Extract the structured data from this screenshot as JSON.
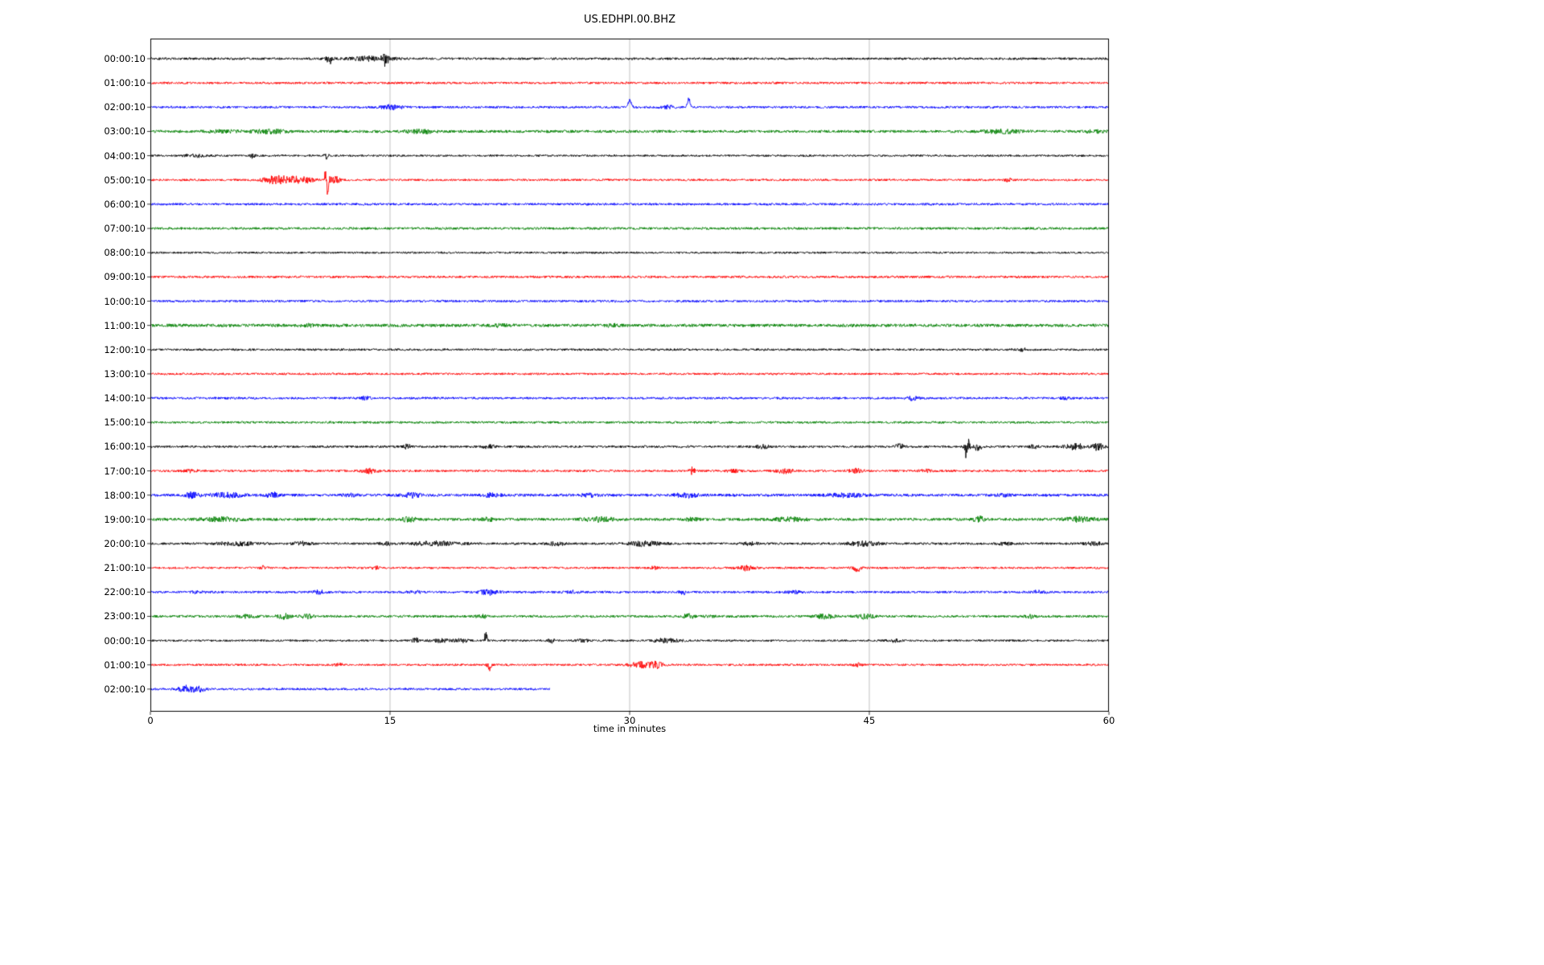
{
  "title": "US.EDHPI.00.BHZ",
  "chart_data": {
    "type": "line",
    "variant": "helicorder-seismogram",
    "title": "US.EDHPI.00.BHZ",
    "xlabel": "time in minutes",
    "xlim": [
      0,
      60
    ],
    "x_ticks": [
      "0",
      "15",
      "30",
      "45",
      "60"
    ],
    "x_tick_values": [
      0,
      15,
      30,
      45,
      60
    ],
    "grid_x_minutes": [
      15,
      30,
      45
    ],
    "grid_color": "#b0b0b0",
    "axis_color": "#000000",
    "trace_colors_cycle": [
      "#000000",
      "#ff0000",
      "#0000ff",
      "#008000"
    ],
    "rows": [
      {
        "label": "00:00:10",
        "color": "#000000",
        "duration_min": 60,
        "noise_amp": 1.4,
        "events": [
          {
            "t": 11.2,
            "w": 0.15,
            "amp": 4
          },
          {
            "t": 11.25,
            "w": 0.1,
            "amp": 3,
            "dir": -1
          },
          {
            "t": 13.9,
            "w": 1.0,
            "amp": 2.5
          },
          {
            "t": 14.7,
            "w": 0.12,
            "amp": 5
          },
          {
            "t": 14.75,
            "w": 0.1,
            "amp": 3,
            "dir": -1
          }
        ]
      },
      {
        "label": "01:00:10",
        "color": "#ff0000",
        "duration_min": 60,
        "noise_amp": 1.35,
        "events": []
      },
      {
        "label": "02:00:10",
        "color": "#0000ff",
        "duration_min": 60,
        "noise_amp": 1.4,
        "events": [
          {
            "t": 15.1,
            "w": 0.5,
            "amp": 2.5
          },
          {
            "t": 30.0,
            "w": 0.1,
            "amp": 10,
            "dir": 1
          },
          {
            "t": 32.4,
            "w": 0.3,
            "amp": 2
          },
          {
            "t": 33.7,
            "w": 0.08,
            "amp": 12,
            "dir": 1
          }
        ]
      },
      {
        "label": "03:00:10",
        "color": "#008000",
        "duration_min": 60,
        "noise_amp": 1.7,
        "events": [
          {
            "t": 4.6,
            "w": 0.6,
            "amp": 1.5
          },
          {
            "t": 7.4,
            "w": 0.8,
            "amp": 2
          },
          {
            "t": 16.9,
            "w": 0.6,
            "amp": 2
          },
          {
            "t": 53.3,
            "w": 0.8,
            "amp": 2
          },
          {
            "t": 59.2,
            "w": 0.4,
            "amp": 1.5
          }
        ]
      },
      {
        "label": "04:00:10",
        "color": "#000000",
        "duration_min": 60,
        "noise_amp": 1.2,
        "events": [
          {
            "t": 2.8,
            "w": 0.5,
            "amp": 1.5
          },
          {
            "t": 6.4,
            "w": 0.15,
            "amp": 2.5
          },
          {
            "t": 11.0,
            "w": 0.1,
            "amp": 3.5
          }
        ]
      },
      {
        "label": "05:00:10",
        "color": "#ff0000",
        "duration_min": 60,
        "noise_amp": 1.3,
        "events": [
          {
            "t": 7.6,
            "w": 0.5,
            "amp": 3
          },
          {
            "t": 8.6,
            "w": 0.6,
            "amp": 4
          },
          {
            "t": 9.7,
            "w": 0.4,
            "amp": 3
          },
          {
            "t": 11.05,
            "w": 0.15,
            "amp": 6
          },
          {
            "t": 10.98,
            "w": 0.05,
            "amp": 14,
            "dir": 1
          },
          {
            "t": 11.06,
            "w": 0.05,
            "amp": 20,
            "dir": -1
          },
          {
            "t": 11.6,
            "w": 0.2,
            "amp": 4
          },
          {
            "t": 53.7,
            "w": 0.15,
            "amp": 2
          }
        ]
      },
      {
        "label": "06:00:10",
        "color": "#0000ff",
        "duration_min": 60,
        "noise_amp": 1.4,
        "events": []
      },
      {
        "label": "07:00:10",
        "color": "#008000",
        "duration_min": 60,
        "noise_amp": 1.5,
        "events": []
      },
      {
        "label": "08:00:10",
        "color": "#000000",
        "duration_min": 60,
        "noise_amp": 1.2,
        "events": []
      },
      {
        "label": "09:00:10",
        "color": "#ff0000",
        "duration_min": 60,
        "noise_amp": 1.4,
        "events": []
      },
      {
        "label": "10:00:10",
        "color": "#0000ff",
        "duration_min": 60,
        "noise_amp": 1.4,
        "events": []
      },
      {
        "label": "11:00:10",
        "color": "#008000",
        "duration_min": 60,
        "noise_amp": 1.9,
        "events": [
          {
            "t": 9.9,
            "w": 0.3,
            "amp": 1.2
          },
          {
            "t": 21.8,
            "w": 0.4,
            "amp": 1.2
          },
          {
            "t": 28.8,
            "w": 0.4,
            "amp": 1.2
          }
        ]
      },
      {
        "label": "12:00:10",
        "color": "#000000",
        "duration_min": 60,
        "noise_amp": 1.3,
        "events": [
          {
            "t": 54.6,
            "w": 0.2,
            "amp": 1.5
          }
        ]
      },
      {
        "label": "13:00:10",
        "color": "#ff0000",
        "duration_min": 60,
        "noise_amp": 1.3,
        "events": []
      },
      {
        "label": "14:00:10",
        "color": "#0000ff",
        "duration_min": 60,
        "noise_amp": 1.4,
        "events": [
          {
            "t": 13.5,
            "w": 0.2,
            "amp": 2
          },
          {
            "t": 47.7,
            "w": 0.25,
            "amp": 2.2
          },
          {
            "t": 57.2,
            "w": 0.2,
            "amp": 1.5
          }
        ]
      },
      {
        "label": "15:00:10",
        "color": "#008000",
        "duration_min": 60,
        "noise_amp": 1.4,
        "events": []
      },
      {
        "label": "16:00:10",
        "color": "#000000",
        "duration_min": 60,
        "noise_amp": 1.4,
        "events": [
          {
            "t": 16.1,
            "w": 0.15,
            "amp": 3
          },
          {
            "t": 21.2,
            "w": 0.3,
            "amp": 2
          },
          {
            "t": 38.3,
            "w": 0.3,
            "amp": 2.2
          },
          {
            "t": 46.9,
            "w": 0.2,
            "amp": 3
          },
          {
            "t": 51.1,
            "w": 0.12,
            "amp": 8
          },
          {
            "t": 51.1,
            "w": 0.06,
            "amp": 12,
            "dir": -1
          },
          {
            "t": 51.16,
            "w": 0.05,
            "amp": 10,
            "dir": 1
          },
          {
            "t": 51.8,
            "w": 0.15,
            "amp": 6
          },
          {
            "t": 55.3,
            "w": 0.2,
            "amp": 2
          },
          {
            "t": 57.9,
            "w": 0.4,
            "amp": 3.5
          },
          {
            "t": 59.3,
            "w": 0.25,
            "amp": 4
          }
        ]
      },
      {
        "label": "17:00:10",
        "color": "#ff0000",
        "duration_min": 60,
        "noise_amp": 1.4,
        "events": [
          {
            "t": 2.5,
            "w": 0.3,
            "amp": 1.5
          },
          {
            "t": 13.7,
            "w": 0.4,
            "amp": 2.5
          },
          {
            "t": 33.9,
            "w": 0.12,
            "amp": 4
          },
          {
            "t": 36.5,
            "w": 0.3,
            "amp": 1.5
          },
          {
            "t": 39.7,
            "w": 0.4,
            "amp": 2.5
          },
          {
            "t": 44.2,
            "w": 0.3,
            "amp": 2.5
          },
          {
            "t": 48.5,
            "w": 0.3,
            "amp": 1.5
          }
        ]
      },
      {
        "label": "18:00:10",
        "color": "#0000ff",
        "duration_min": 60,
        "noise_amp": 1.7,
        "events": [
          {
            "t": 2.6,
            "w": 0.3,
            "amp": 3
          },
          {
            "t": 4.8,
            "w": 0.7,
            "amp": 2.5
          },
          {
            "t": 7.6,
            "w": 0.25,
            "amp": 3.5
          },
          {
            "t": 12.5,
            "w": 0.3,
            "amp": 1.5
          },
          {
            "t": 16.4,
            "w": 0.4,
            "amp": 2.5
          },
          {
            "t": 21.3,
            "w": 0.4,
            "amp": 2
          },
          {
            "t": 27.5,
            "w": 0.4,
            "amp": 1.5
          },
          {
            "t": 33.6,
            "w": 0.5,
            "amp": 2.5
          },
          {
            "t": 43.6,
            "w": 0.8,
            "amp": 2
          },
          {
            "t": 53.5,
            "w": 0.4,
            "amp": 1.5
          }
        ]
      },
      {
        "label": "19:00:10",
        "color": "#008000",
        "duration_min": 60,
        "noise_amp": 1.7,
        "events": [
          {
            "t": 4.4,
            "w": 0.9,
            "amp": 2
          },
          {
            "t": 16.2,
            "w": 0.4,
            "amp": 2.5
          },
          {
            "t": 21.1,
            "w": 0.3,
            "amp": 2
          },
          {
            "t": 28.1,
            "w": 0.7,
            "amp": 2.5
          },
          {
            "t": 33.9,
            "w": 0.3,
            "amp": 1.5
          },
          {
            "t": 40.0,
            "w": 0.7,
            "amp": 2
          },
          {
            "t": 51.9,
            "w": 0.25,
            "amp": 3
          },
          {
            "t": 58.1,
            "w": 0.7,
            "amp": 2.5
          }
        ]
      },
      {
        "label": "20:00:10",
        "color": "#000000",
        "duration_min": 60,
        "noise_amp": 1.4,
        "events": [
          {
            "t": 5.4,
            "w": 0.9,
            "amp": 2
          },
          {
            "t": 9.5,
            "w": 0.4,
            "amp": 2
          },
          {
            "t": 14.8,
            "w": 0.3,
            "amp": 1.5
          },
          {
            "t": 17.9,
            "w": 1.0,
            "amp": 2.5
          },
          {
            "t": 25.4,
            "w": 0.4,
            "amp": 2
          },
          {
            "t": 30.9,
            "w": 0.7,
            "amp": 2.5
          },
          {
            "t": 37.5,
            "w": 0.4,
            "amp": 1.5
          },
          {
            "t": 44.6,
            "w": 0.7,
            "amp": 2.5
          },
          {
            "t": 53.5,
            "w": 0.3,
            "amp": 1.5
          },
          {
            "t": 59.0,
            "w": 0.4,
            "amp": 1.8
          }
        ]
      },
      {
        "label": "21:00:10",
        "color": "#ff0000",
        "duration_min": 60,
        "noise_amp": 1.3,
        "events": [
          {
            "t": 7.1,
            "w": 0.15,
            "amp": 2
          },
          {
            "t": 14.1,
            "w": 0.15,
            "amp": 1.8
          },
          {
            "t": 31.5,
            "w": 0.2,
            "amp": 1.5
          },
          {
            "t": 37.2,
            "w": 0.4,
            "amp": 3
          },
          {
            "t": 44.2,
            "w": 0.25,
            "amp": 2
          },
          {
            "t": 44.25,
            "w": 0.15,
            "amp": 3,
            "dir": -1
          }
        ]
      },
      {
        "label": "22:00:10",
        "color": "#0000ff",
        "duration_min": 60,
        "noise_amp": 1.4,
        "events": [
          {
            "t": 3.0,
            "w": 0.3,
            "amp": 1.5
          },
          {
            "t": 10.6,
            "w": 0.25,
            "amp": 2
          },
          {
            "t": 16.5,
            "w": 0.3,
            "amp": 1.5
          },
          {
            "t": 21.2,
            "w": 0.4,
            "amp": 3
          },
          {
            "t": 26.5,
            "w": 0.3,
            "amp": 1.5
          },
          {
            "t": 33.3,
            "w": 0.15,
            "amp": 3.5
          },
          {
            "t": 40.3,
            "w": 0.3,
            "amp": 1.5
          },
          {
            "t": 55.6,
            "w": 0.3,
            "amp": 1.5
          }
        ]
      },
      {
        "label": "23:00:10",
        "color": "#008000",
        "duration_min": 60,
        "noise_amp": 1.5,
        "events": [
          {
            "t": 6.0,
            "w": 0.4,
            "amp": 1.5
          },
          {
            "t": 8.4,
            "w": 0.3,
            "amp": 3
          },
          {
            "t": 9.8,
            "w": 0.25,
            "amp": 2.5
          },
          {
            "t": 20.8,
            "w": 0.3,
            "amp": 1.5
          },
          {
            "t": 33.7,
            "w": 0.2,
            "amp": 3.5
          },
          {
            "t": 35.0,
            "w": 0.2,
            "amp": 1.5
          },
          {
            "t": 42.2,
            "w": 0.4,
            "amp": 2.5
          },
          {
            "t": 44.7,
            "w": 0.4,
            "amp": 2.5
          },
          {
            "t": 55.1,
            "w": 0.25,
            "amp": 1.8
          }
        ]
      },
      {
        "label": "00:00:10",
        "color": "#000000",
        "duration_min": 60,
        "noise_amp": 1.2,
        "events": [
          {
            "t": 16.6,
            "w": 0.15,
            "amp": 3
          },
          {
            "t": 18.2,
            "w": 0.5,
            "amp": 1.8
          },
          {
            "t": 19.5,
            "w": 0.3,
            "amp": 2
          },
          {
            "t": 21.0,
            "w": 0.08,
            "amp": 5
          },
          {
            "t": 21.0,
            "w": 0.07,
            "amp": 8,
            "dir": 1
          },
          {
            "t": 25.1,
            "w": 0.15,
            "amp": 2.5
          },
          {
            "t": 27.0,
            "w": 0.3,
            "amp": 1.5
          },
          {
            "t": 32.3,
            "w": 0.6,
            "amp": 2.5
          },
          {
            "t": 46.5,
            "w": 0.3,
            "amp": 1.5
          }
        ]
      },
      {
        "label": "01:00:10",
        "color": "#ff0000",
        "duration_min": 60,
        "noise_amp": 1.3,
        "events": [
          {
            "t": 11.8,
            "w": 0.2,
            "amp": 1.8
          },
          {
            "t": 21.2,
            "w": 0.12,
            "amp": 3
          },
          {
            "t": 21.25,
            "w": 0.1,
            "amp": 4,
            "dir": -1
          },
          {
            "t": 30.7,
            "w": 0.5,
            "amp": 3.5
          },
          {
            "t": 31.7,
            "w": 0.25,
            "amp": 4
          },
          {
            "t": 44.3,
            "w": 0.2,
            "amp": 2
          }
        ]
      },
      {
        "label": "02:00:10",
        "color": "#0000ff",
        "duration_min": 25,
        "noise_amp": 1.4,
        "events": [
          {
            "t": 2.3,
            "w": 0.35,
            "amp": 4
          },
          {
            "t": 3.1,
            "w": 0.25,
            "amp": 2.5
          }
        ]
      }
    ]
  }
}
